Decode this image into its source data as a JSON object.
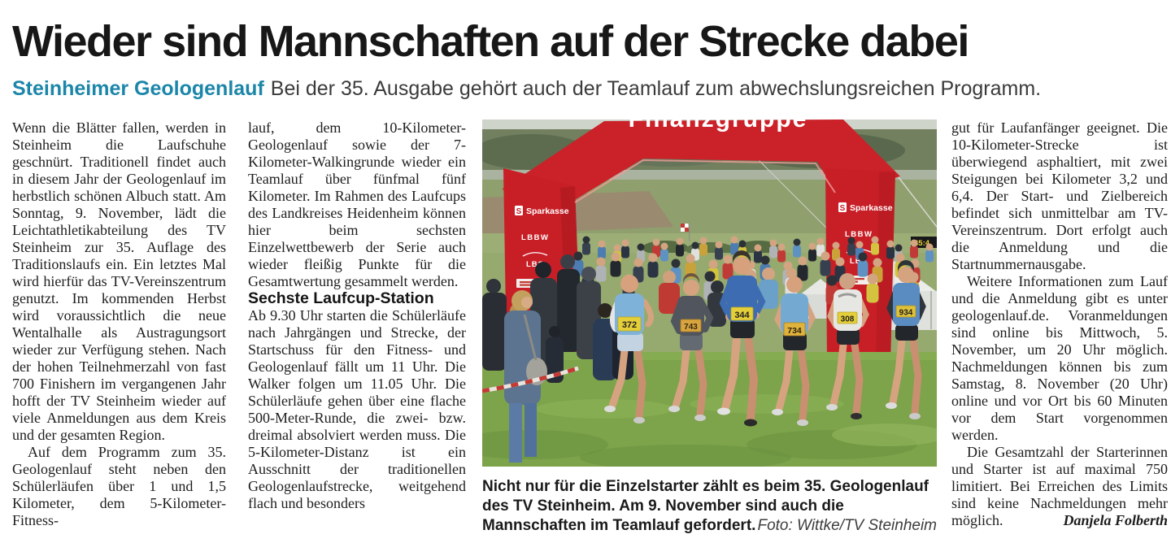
{
  "article": {
    "headline": "Wieder sind Mannschaften auf der Strecke dabei",
    "kicker": "Steinheimer Geologenlauf",
    "deck": "Bei der 35. Ausgabe gehört auch der Teamlauf zum abwechslungsreichen Programm.",
    "columns": {
      "col1": {
        "p1": "Wenn die Blätter fallen, werden in Steinheim die Laufschuhe geschnürt. Traditionell findet auch in diesem Jahr der Geologenlauf im herbstlich schönen Albuch statt. Am Sonntag, 9. November, lädt die Leichtathletikabteilung des TV Steinheim zur 35. Auflage des Traditionslaufs ein. Ein letztes Mal wird hierfür das TV-Vereinszentrum genutzt. Im kommenden Herbst wird voraussichtlich die neue Wentalhalle als Austragungsort wieder zur Verfügung stehen. Nach der hohen Teilnehmerzahl von fast 700 Finishern im vergangenen Jahr hofft der TV Steinheim wieder auf viele Anmeldungen aus dem Kreis und der gesamten Region.",
        "p2": "Auf dem Programm zum 35. Geologenlauf steht neben den Schülerläufen über 1 und 1,5 Kilometer, dem 5-Kilometer-Fitness-"
      },
      "col2": {
        "p1": "lauf, dem 10-Kilometer-Geologenlauf sowie der 7-Kilometer-Walkingrunde wieder ein Teamlauf über fünfmal fünf Kilometer. Im Rahmen des Laufcups des Landkreises Heidenheim können hier beim sechsten Einzelwettbewerb der Serie auch wieder fleißig Punkte für die Gesamtwertung gesammelt werden.",
        "heading": "Sechste Laufcup-Station",
        "p2": "Ab 9.30 Uhr starten die Schülerläufe nach Jahrgängen und Strecke, der Startschuss für den Fitness- und Geologenlauf fällt um 11 Uhr. Die Walker folgen um 11.05 Uhr. Die Schülerläufe gehen über eine flache 500-Meter-Runde, die zwei- bzw. dreimal absolviert werden muss. Die 5-Kilometer-Distanz ist ein Ausschnitt der traditionellen Geologenlaufstrecke, weitgehend flach und besonders"
      },
      "col4": {
        "p1": "gut für Laufanfänger geeignet. Die 10-Kilometer-Strecke ist überwiegend asphaltiert, mit zwei Steigungen bei Kilometer 3,2 und 6,4. Der Start- und Zielbereich befindet sich unmittelbar am TV-Vereinszentrum. Dort erfolgt auch die Anmeldung und die Startnummernausgabe.",
        "p2": "Weitere Informationen zum Lauf und die Anmeldung gibt es unter geologenlauf.de. Voranmeldungen sind online bis Mittwoch, 5. November, um 20 Uhr möglich. Nachmeldungen können bis zum Samstag, 8. November (20 Uhr) online und vor Ort bis 60 Minuten vor dem Start vorgenommen werden.",
        "p3": "Die Gesamtzahl der Starterinnen und Starter ist auf maximal 750 limitiert. Bei Erreichen des Limits sind keine Nachmeldungen mehr möglich.",
        "author": "Danjela Folberth"
      }
    },
    "photo": {
      "caption": "Nicht nur für die Einzelstarter zählt es beim 35. Geologenlauf des TV Steinheim. Am 9. November sind auch die Mannschaften im Teamlauf gefordert.",
      "credit": "Foto: Wittke/TV Steinheim",
      "arch_banner": "Finanzgruppe",
      "sparkasse_symbol": "S",
      "sponsors": [
        "Sparkasse",
        "LBBW",
        "LBS"
      ],
      "bibs": [
        "372",
        "743",
        "344",
        "734",
        "308",
        "934"
      ],
      "clock": "45:4"
    }
  },
  "colors": {
    "kicker_teal": "#1c86a9",
    "arch_red": "#cb2128",
    "grass_green": "#7da34b",
    "bib_yellow": "#e5cf39"
  }
}
